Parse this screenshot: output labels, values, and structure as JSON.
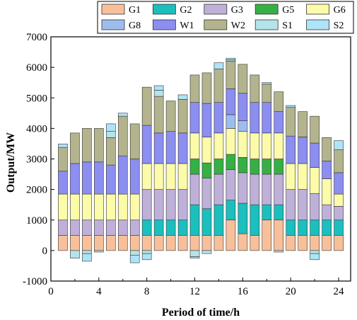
{
  "chart_data": {
    "type": "bar",
    "stacked": true,
    "xlabel": "Period of time/h",
    "ylabel": "Output/MW",
    "xlim": [
      0,
      25
    ],
    "ylim": [
      -1000,
      7000
    ],
    "xticks": [
      0,
      4,
      8,
      12,
      16,
      20,
      24
    ],
    "yticks": [
      -1000,
      0,
      1000,
      2000,
      3000,
      4000,
      5000,
      6000,
      7000
    ],
    "x": [
      1,
      2,
      3,
      4,
      5,
      6,
      7,
      8,
      9,
      10,
      11,
      12,
      13,
      14,
      15,
      16,
      17,
      18,
      19,
      20,
      21,
      22,
      23,
      24
    ],
    "legend_position": "top",
    "series": [
      {
        "name": "G1",
        "color": "#F8C09A",
        "values": [
          500,
          500,
          500,
          500,
          500,
          500,
          500,
          500,
          500,
          500,
          500,
          500,
          500,
          500,
          1000,
          550,
          500,
          1000,
          1000,
          500,
          500,
          500,
          500,
          500
        ]
      },
      {
        "name": "G2",
        "color": "#1BBFBE",
        "values": [
          0,
          0,
          0,
          0,
          0,
          0,
          0,
          500,
          500,
          500,
          500,
          1000,
          870,
          1000,
          650,
          1000,
          1000,
          500,
          500,
          500,
          500,
          500,
          500,
          500
        ]
      },
      {
        "name": "G3",
        "color": "#BFB0D9",
        "values": [
          500,
          500,
          500,
          500,
          500,
          500,
          500,
          1000,
          1000,
          1000,
          1000,
          1000,
          1000,
          1000,
          1000,
          1000,
          1000,
          1000,
          1000,
          1000,
          1000,
          870,
          500,
          450
        ]
      },
      {
        "name": "G5",
        "color": "#36B045",
        "values": [
          0,
          0,
          0,
          0,
          0,
          0,
          0,
          0,
          0,
          0,
          0,
          500,
          500,
          500,
          500,
          500,
          500,
          500,
          500,
          0,
          0,
          0,
          0,
          0
        ]
      },
      {
        "name": "G6",
        "color": "#FBFBA9",
        "values": [
          850,
          850,
          850,
          850,
          850,
          850,
          850,
          850,
          850,
          850,
          850,
          850,
          850,
          850,
          850,
          850,
          850,
          850,
          850,
          850,
          850,
          850,
          850,
          400
        ]
      },
      {
        "name": "G8",
        "color": "#9DBEED",
        "values": [
          0,
          0,
          0,
          0,
          0,
          0,
          0,
          0,
          0,
          0,
          0,
          0,
          0,
          0,
          450,
          350,
          0,
          0,
          0,
          0,
          0,
          0,
          0,
          0
        ]
      },
      {
        "name": "W1",
        "color": "#8C8EF0",
        "values": [
          750,
          1000,
          1050,
          1050,
          950,
          1250,
          1150,
          1250,
          1000,
          1050,
          1000,
          1000,
          1100,
          1000,
          850,
          900,
          1000,
          1000,
          700,
          900,
          870,
          800,
          580,
          700
        ]
      },
      {
        "name": "W2",
        "color": "#B3B48E",
        "values": [
          780,
          1000,
          1100,
          1100,
          900,
          1300,
          1150,
          1250,
          1200,
          1000,
          1100,
          900,
          1000,
          1100,
          900,
          950,
          900,
          600,
          650,
          940,
          830,
          880,
          770,
          750
        ]
      },
      {
        "name": "S1",
        "color": "#B4E3E8",
        "values": [
          0,
          0,
          0,
          0,
          200,
          0,
          0,
          0,
          200,
          0,
          0,
          0,
          0,
          0,
          50,
          0,
          0,
          0,
          0,
          0,
          0,
          0,
          0,
          0
        ]
      },
      {
        "name": "S2",
        "color": "#AEE3F8",
        "values": [
          110,
          0,
          0,
          0,
          250,
          100,
          0,
          0,
          150,
          0,
          150,
          0,
          0,
          200,
          50,
          0,
          0,
          50,
          0,
          60,
          0,
          0,
          0,
          300
        ]
      }
    ],
    "negative_series": [
      {
        "name": "S1",
        "color": "#B4E3E8",
        "values": [
          0,
          -250,
          -100,
          -50,
          0,
          0,
          -150,
          -100,
          0,
          0,
          0,
          -200,
          0,
          0,
          0,
          0,
          0,
          0,
          -50,
          0,
          0,
          -100,
          0,
          0
        ]
      },
      {
        "name": "S2",
        "color": "#AEE3F8",
        "values": [
          0,
          0,
          -250,
          0,
          0,
          0,
          -250,
          -200,
          0,
          0,
          0,
          -50,
          -100,
          0,
          0,
          0,
          0,
          0,
          0,
          0,
          0,
          -200,
          0,
          0
        ]
      }
    ]
  }
}
